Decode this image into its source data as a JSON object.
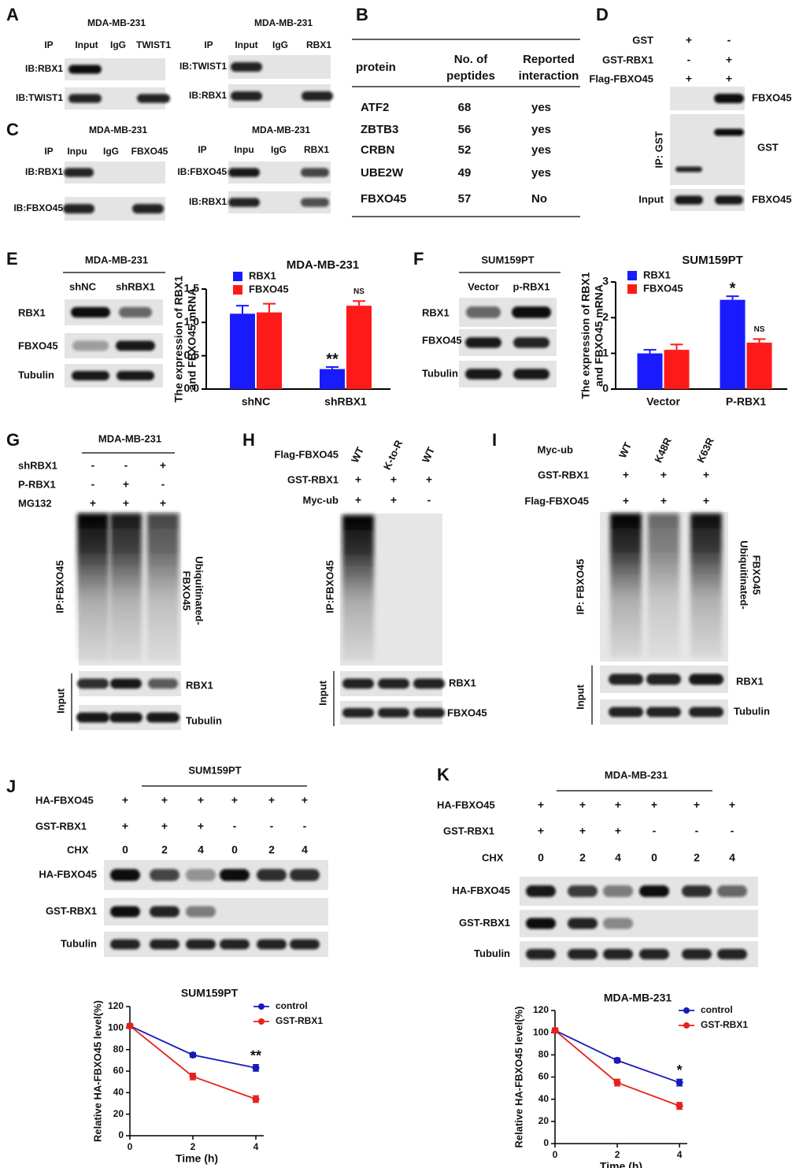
{
  "figure": {
    "A": {
      "letter": "A",
      "left": {
        "cell": "MDA-MB-231",
        "ip": [
          "IP",
          "Input",
          "IgG",
          "TWIST1"
        ],
        "rows": [
          "IB:RBX1",
          "IB:TWIST1"
        ]
      },
      "right": {
        "cell": "MDA-MB-231",
        "ip": [
          "IP",
          "Input",
          "IgG",
          "RBX1"
        ],
        "rows": [
          "IB:TWIST1",
          "IB:RBX1"
        ]
      }
    },
    "B": {
      "letter": "B",
      "header": [
        [
          "protein"
        ],
        [
          "No. of",
          "peptides"
        ],
        [
          "Reported",
          "interaction"
        ]
      ],
      "rows": [
        [
          "ATF2",
          68,
          "yes"
        ],
        [
          "ZBTB3",
          56,
          "yes"
        ],
        [
          "CRBN",
          52,
          "yes"
        ],
        [
          "UBE2W",
          49,
          "yes"
        ],
        [
          "FBXO45",
          57,
          "No"
        ]
      ]
    },
    "C": {
      "letter": "C",
      "left": {
        "cell": "MDA-MB-231",
        "ip": [
          "IP",
          "Inpu",
          "IgG",
          "FBXO45"
        ],
        "rows": [
          "IB:RBX1",
          "IB:FBXO45"
        ]
      },
      "right": {
        "cell": "MDA-MB-231",
        "ip": [
          "IP",
          "Inpu",
          "IgG",
          "RBX1"
        ],
        "rows": [
          "IB:FBXO45",
          "IB:RBX1"
        ]
      }
    },
    "D": {
      "letter": "D",
      "conditions": [
        {
          "name": "GST",
          "signs": [
            "+",
            "-"
          ]
        },
        {
          "name": "GST-RBX1",
          "signs": [
            "-",
            "+"
          ]
        },
        {
          "name": "Flag-FBXO45",
          "signs": [
            "+",
            "+"
          ]
        }
      ],
      "bands": [
        "FBXO45",
        "GST",
        "FBXO45"
      ],
      "ip": "IP:  GST",
      "input": "Input"
    },
    "E": {
      "letter": "E",
      "cell": "MDA-MB-231",
      "lanes": [
        "shNC",
        "shRBX1"
      ],
      "rows": [
        "RBX1",
        "FBXO45",
        "Tubulin"
      ]
    },
    "F": {
      "letter": "F",
      "cell": "SUM159PT",
      "lanes": [
        "Vector",
        "p-RBX1"
      ],
      "rows": [
        "RBX1",
        "FBXO45",
        "Tubulin"
      ]
    },
    "G": {
      "letter": "G",
      "cell": "MDA-MB-231",
      "conditions": [
        {
          "name": "shRBX1",
          "signs": [
            "-",
            "-",
            "+"
          ]
        },
        {
          "name": "P-RBX1",
          "signs": [
            "-",
            "+",
            "-"
          ]
        },
        {
          "name": "MG132",
          "signs": [
            "+",
            "+",
            "+"
          ]
        }
      ],
      "ip": "IP:FBXO45",
      "smear": [
        "Ubiquitinated-",
        "FBXO45"
      ],
      "input": "Input",
      "rows": [
        "RBX1",
        "Tubulin"
      ]
    },
    "H": {
      "letter": "H",
      "conditions": [
        {
          "name": "Flag-FBXO45",
          "signs": [
            "WT",
            "K-to-R",
            "WT"
          ]
        },
        {
          "name": "GST-RBX1",
          "signs": [
            "+",
            "+",
            "+"
          ]
        },
        {
          "name": "Myc-ub",
          "signs": [
            "+",
            "+",
            "-"
          ]
        }
      ],
      "ip": "IP:FBXO45",
      "input": "Input",
      "rows": [
        "RBX1",
        "FBXO45"
      ]
    },
    "I": {
      "letter": "I",
      "conditions": [
        {
          "name": "Myc-ub",
          "signs": [
            "WT",
            "K48R",
            "K63R"
          ]
        },
        {
          "name": "GST-RBX1",
          "signs": [
            "+",
            "+",
            "+"
          ]
        },
        {
          "name": "Flag-FBXO45",
          "signs": [
            "+",
            "+",
            "+"
          ]
        }
      ],
      "ip": "IP: FBXO45",
      "smear": [
        "Ubiquitinated-",
        "FBXO45"
      ],
      "input": "Input",
      "rows": [
        "RBX1",
        "Tubulin"
      ]
    },
    "J": {
      "letter": "J",
      "cell": "SUM159PT",
      "conditions": [
        {
          "name": "HA-FBXO45",
          "signs": [
            "+",
            "+",
            "+",
            "+",
            "+",
            "+"
          ]
        },
        {
          "name": "GST-RBX1",
          "signs": [
            "+",
            "+",
            "+",
            "-",
            "-",
            "-"
          ]
        },
        {
          "name": "CHX",
          "signs": [
            "0",
            "2",
            "4",
            "0",
            "2",
            "4"
          ]
        }
      ],
      "rows": [
        "HA-FBXO45",
        "GST-RBX1",
        "Tubulin"
      ]
    },
    "K": {
      "letter": "K",
      "cell": "MDA-MB-231",
      "conditions": [
        {
          "name": "HA-FBXO45",
          "signs": [
            "+",
            "+",
            "+",
            "+",
            "+",
            "+"
          ]
        },
        {
          "name": "GST-RBX1",
          "signs": [
            "+",
            "+",
            "+",
            "-",
            "-",
            "-"
          ]
        },
        {
          "name": "CHX",
          "signs": [
            "0",
            "2",
            "4",
            "0",
            "2",
            "4"
          ]
        }
      ],
      "rows": [
        "HA-FBXO45",
        "GST-RBX1",
        "Tubulin"
      ]
    }
  },
  "chart_data": [
    {
      "type": "bar",
      "title": "MDA-MB-231",
      "y_label": [
        "The expression of RBX1",
        "and FBXO45 mRNA"
      ],
      "categories": [
        "shNC",
        "shRBX1"
      ],
      "series": [
        {
          "name": "RBX1",
          "color": "#1a1aff",
          "values": [
            1.13,
            0.3
          ],
          "errors": [
            0.12,
            0.03
          ]
        },
        {
          "name": "FBXO45",
          "color": "#ff1a1a",
          "values": [
            1.15,
            1.25
          ],
          "errors": [
            0.13,
            0.07
          ]
        }
      ],
      "ylim": [
        0,
        1.5
      ],
      "yticks": [
        {
          "value": 0,
          "label": "0.0"
        },
        {
          "value": 0.5,
          "label": "0.5"
        },
        {
          "value": 1,
          "label": "1.0"
        },
        {
          "value": 1.5,
          "label": "1.5"
        }
      ],
      "annotations": [
        "**",
        "NS"
      ]
    },
    {
      "type": "bar",
      "title": "SUM159PT",
      "y_label": [
        "The expression of RBX1",
        "and FBXO45 mRNA"
      ],
      "categories": [
        "Vector",
        "P-RBX1"
      ],
      "series": [
        {
          "name": "RBX1",
          "color": "#1a1aff",
          "values": [
            1.0,
            2.5
          ],
          "errors": [
            0.1,
            0.1
          ]
        },
        {
          "name": "FBXO45",
          "color": "#ff1a1a",
          "values": [
            1.1,
            1.3
          ],
          "errors": [
            0.15,
            0.1
          ]
        }
      ],
      "ylim": [
        0,
        3
      ],
      "yticks": [
        0,
        1,
        2,
        3
      ],
      "annotations": [
        "*",
        "NS"
      ]
    },
    {
      "type": "line",
      "title": "SUM159PT",
      "y_label": "Relative HA-FBXO45 level(%)",
      "x_label": "Time (h)",
      "x": [
        0,
        2,
        4
      ],
      "series": [
        {
          "name": "control",
          "color": "#1a1ab8",
          "values": [
            102,
            75,
            63
          ],
          "errors": [
            2,
            2,
            3
          ]
        },
        {
          "name": "GST-RBX1",
          "color": "#e8201c",
          "values": [
            102,
            55,
            34
          ],
          "errors": [
            2,
            3,
            3
          ]
        }
      ],
      "xlim": [
        0,
        4.25
      ],
      "xticks": [
        0,
        2,
        4
      ],
      "ylim": [
        0,
        120
      ],
      "yticks": [
        0,
        20,
        40,
        60,
        80,
        100,
        120
      ],
      "annotations": [
        "**"
      ]
    },
    {
      "type": "line",
      "title": "MDA-MB-231",
      "y_label": "Relative HA-FBXO45 level(%)",
      "x_label": "Time (h)",
      "x": [
        0,
        2,
        4
      ],
      "series": [
        {
          "name": "control",
          "color": "#1a1ab8",
          "values": [
            102,
            75,
            55
          ],
          "errors": [
            2,
            2,
            3
          ]
        },
        {
          "name": "GST-RBX1",
          "color": "#e8201c",
          "values": [
            102,
            55,
            34
          ],
          "errors": [
            2,
            3,
            3
          ]
        }
      ],
      "xlim": [
        0,
        4.25
      ],
      "xticks": [
        0,
        2,
        4
      ],
      "ylim": [
        0,
        120
      ],
      "yticks": [
        0,
        20,
        40,
        60,
        80,
        100,
        120
      ],
      "annotations": [
        "*"
      ]
    }
  ]
}
